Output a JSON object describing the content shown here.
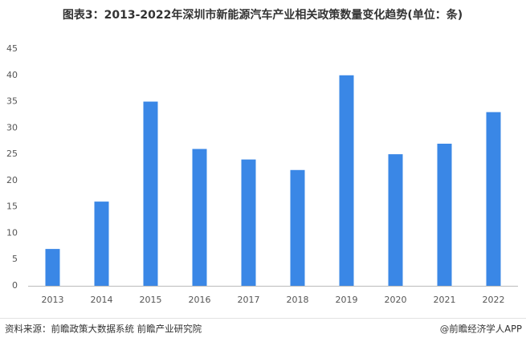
{
  "chart_data": {
    "type": "bar",
    "title": "图表3：2013-2022年深圳市新能源汽车产业相关政策数量变化趋势(单位：条)",
    "categories": [
      "2013",
      "2014",
      "2015",
      "2016",
      "2017",
      "2018",
      "2019",
      "2020",
      "2021",
      "2022"
    ],
    "values": [
      7,
      16,
      35,
      26,
      24,
      22,
      40,
      25,
      27,
      33
    ],
    "color": "#3a87e6",
    "ylim": [
      0,
      45
    ],
    "yticks": [
      0,
      5,
      10,
      15,
      20,
      25,
      30,
      35,
      40,
      45
    ],
    "grid": false,
    "source": "资料来源：前瞻政策大数据系统 前瞻产业研究院",
    "credit": "@前瞻经济学人APP"
  }
}
